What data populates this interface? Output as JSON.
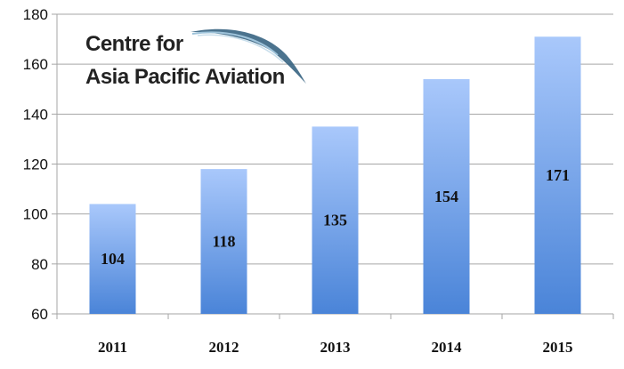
{
  "logo": {
    "line1": "Centre for",
    "line2": "Asia Pacific Aviation"
  },
  "colors": {
    "bar_top": "#a9c8fb",
    "bar_bottom": "#4a84d8",
    "grid": "#a6a6a6",
    "logo_swoosh": "#2c5a7a"
  },
  "chart_data": {
    "type": "bar",
    "title": "",
    "xlabel": "",
    "ylabel": "",
    "categories": [
      "2011",
      "2012",
      "2013",
      "2014",
      "2015"
    ],
    "values": [
      104,
      118,
      135,
      154,
      171
    ],
    "data_labels": [
      "104",
      "118",
      "135",
      "154",
      "171"
    ],
    "ylim": [
      60,
      180
    ],
    "yticks": [
      60,
      80,
      100,
      120,
      140,
      160,
      180
    ],
    "grid": true,
    "legend": "none"
  }
}
